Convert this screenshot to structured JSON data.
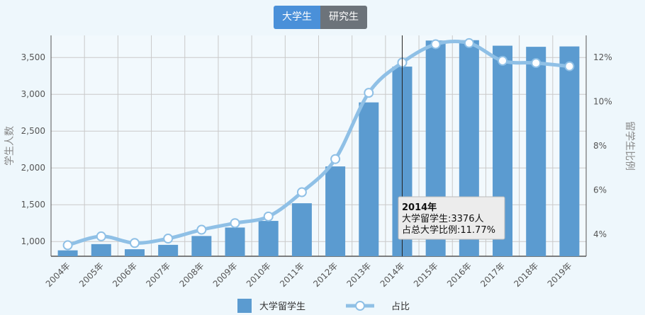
{
  "tabs": [
    {
      "label": "大学生",
      "active": true
    },
    {
      "label": "研究生",
      "active": false
    }
  ],
  "colors": {
    "bar": "#5b9bd0",
    "line": "#8fc0e6",
    "tab_active": "#4a90d9",
    "tab_inactive": "#6c737a"
  },
  "tooltip": {
    "title": "2014年",
    "line1": "大学留学生:3376人",
    "line2": "占总大学比例:11.77%"
  },
  "chart_data": {
    "type": "bar",
    "categories": [
      "2004年",
      "2005年",
      "2006年",
      "2007年",
      "2008年",
      "2009年",
      "2010年",
      "2011年",
      "2012年",
      "2013年",
      "2014年",
      "2015年",
      "2016年",
      "2017年",
      "2018年",
      "2019年"
    ],
    "series": [
      {
        "name": "大学留学生",
        "type": "bar",
        "axis": "left",
        "values": [
          880,
          965,
          895,
          955,
          1075,
          1190,
          1280,
          1520,
          2020,
          2890,
          3376,
          3730,
          3735,
          3660,
          3645,
          3650
        ]
      },
      {
        "name": "占比",
        "type": "line",
        "axis": "right",
        "values": [
          3.5,
          3.9,
          3.6,
          3.8,
          4.2,
          4.5,
          4.8,
          5.9,
          7.4,
          10.4,
          11.77,
          12.6,
          12.65,
          11.85,
          11.75,
          11.6
        ]
      }
    ],
    "ylabel": "学生人数",
    "y2label": "留学生比例",
    "ylim": [
      800,
      3800
    ],
    "y_ticks": [
      "1,000",
      "1,500",
      "2,000",
      "2,500",
      "3,000",
      "3,500"
    ],
    "y2lim": [
      3,
      13
    ],
    "y2_ticks": [
      "4%",
      "6%",
      "8%",
      "10%",
      "12%"
    ],
    "legend": [
      "大学留学生",
      "占比"
    ],
    "grid": true
  }
}
